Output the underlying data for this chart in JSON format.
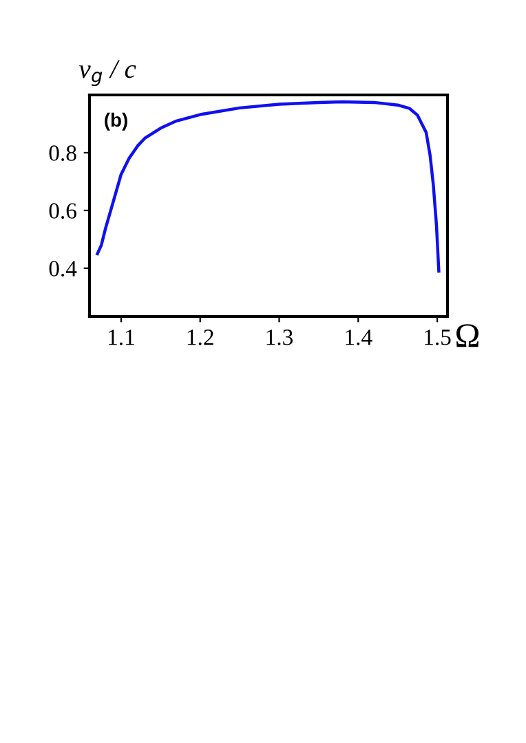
{
  "chart_data": {
    "type": "line",
    "xlabel": "Ω",
    "ylabel": "v$_{g}$ / c",
    "annotations": [
      "(b)"
    ],
    "x": [
      1.07,
      1.075,
      1.08,
      1.09,
      1.1,
      1.11,
      1.121,
      1.13,
      1.15,
      1.17,
      1.2,
      1.25,
      1.3,
      1.35,
      1.38,
      1.42,
      1.45,
      1.465,
      1.475,
      1.486,
      1.491,
      1.495,
      1.499,
      1.502
    ],
    "series": [
      {
        "color": "#1010f0",
        "values": [
          0.45,
          0.48,
          0.535,
          0.63,
          0.725,
          0.78,
          0.824,
          0.85,
          0.885,
          0.91,
          0.932,
          0.955,
          0.968,
          0.974,
          0.976,
          0.974,
          0.965,
          0.953,
          0.93,
          0.87,
          0.79,
          0.69,
          0.55,
          0.39
        ]
      }
    ],
    "xlim": [
      1.06,
      1.513
    ],
    "ylim": [
      0.233,
      1.0
    ],
    "xticks": [
      1.1,
      1.2,
      1.3,
      1.4,
      1.5
    ],
    "yticks": [
      0.4,
      0.6,
      0.8
    ],
    "grid": false,
    "legend": false,
    "marker": "none",
    "line_style": "solid"
  }
}
